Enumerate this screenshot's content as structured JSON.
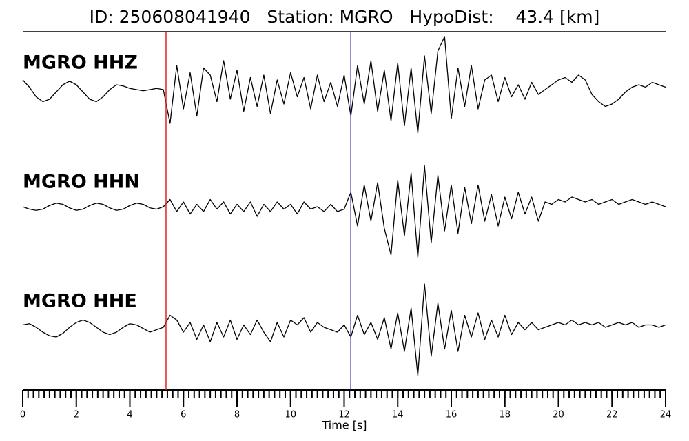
{
  "chart_data": {
    "type": "line",
    "title": "ID: 250608041940   Station: MGRO   HypoDist:    43.4 [km]",
    "xlabel": "Time [s]",
    "xlim": [
      0,
      24
    ],
    "xticks": [
      0,
      2,
      4,
      6,
      8,
      10,
      12,
      14,
      16,
      18,
      20,
      22,
      24
    ],
    "xminor": 0.2,
    "label_color": "#4c9a0a",
    "line_color": "#000000",
    "picks": [
      {
        "x": 5.35,
        "color": "#e8211f"
      },
      {
        "x": 12.25,
        "color": "#2a2aa0"
      }
    ],
    "x": [
      0,
      0.25,
      0.5,
      0.75,
      1,
      1.25,
      1.5,
      1.75,
      2,
      2.25,
      2.5,
      2.75,
      3,
      3.25,
      3.5,
      3.75,
      4,
      4.25,
      4.5,
      4.75,
      5,
      5.25,
      5.5,
      5.75,
      6,
      6.25,
      6.5,
      6.75,
      7,
      7.25,
      7.5,
      7.75,
      8,
      8.25,
      8.5,
      8.75,
      9,
      9.25,
      9.5,
      9.75,
      10,
      10.25,
      10.5,
      10.75,
      11,
      11.25,
      11.5,
      11.75,
      12,
      12.25,
      12.5,
      12.75,
      13,
      13.25,
      13.5,
      13.75,
      14,
      14.25,
      14.5,
      14.75,
      15,
      15.25,
      15.5,
      15.75,
      16,
      16.25,
      16.5,
      16.75,
      17,
      17.25,
      17.5,
      17.75,
      18,
      18.25,
      18.5,
      18.75,
      19,
      19.25,
      19.5,
      19.75,
      20,
      20.25,
      20.5,
      20.75,
      21,
      21.25,
      21.5,
      21.75,
      22,
      22.25,
      22.5,
      22.75,
      23,
      23.25,
      23.5,
      23.75,
      24
    ],
    "series": [
      {
        "name": "MGRO HHZ",
        "values": [
          0.4,
          0.1,
          -0.3,
          -0.5,
          -0.4,
          -0.1,
          0.2,
          0.35,
          0.2,
          -0.1,
          -0.4,
          -0.5,
          -0.3,
          0.0,
          0.2,
          0.15,
          0.05,
          0.0,
          -0.05,
          0.0,
          0.05,
          0.0,
          -1.4,
          1.0,
          -0.8,
          0.7,
          -1.1,
          0.9,
          0.6,
          -0.5,
          1.2,
          -0.4,
          0.8,
          -0.9,
          0.5,
          -0.7,
          0.6,
          -1.0,
          0.4,
          -0.6,
          0.7,
          -0.3,
          0.5,
          -0.8,
          0.6,
          -0.5,
          0.3,
          -0.7,
          0.6,
          -1.1,
          1.0,
          -0.6,
          1.2,
          -0.9,
          0.8,
          -1.3,
          1.1,
          -1.5,
          0.9,
          -1.8,
          1.4,
          -1.0,
          1.6,
          2.2,
          -1.2,
          0.9,
          -0.7,
          1.0,
          -0.8,
          0.4,
          0.6,
          -0.5,
          0.5,
          -0.3,
          0.2,
          -0.4,
          0.3,
          -0.2,
          0.0,
          0.2,
          0.4,
          0.5,
          0.3,
          0.6,
          0.4,
          -0.2,
          -0.5,
          -0.7,
          -0.6,
          -0.4,
          -0.1,
          0.1,
          0.2,
          0.1,
          0.3,
          0.2,
          0.1
        ]
      },
      {
        "name": "MGRO HHN",
        "values": [
          0.0,
          -0.1,
          -0.15,
          -0.1,
          0.05,
          0.15,
          0.1,
          -0.05,
          -0.15,
          -0.1,
          0.05,
          0.15,
          0.1,
          -0.05,
          -0.15,
          -0.1,
          0.05,
          0.15,
          0.1,
          -0.05,
          -0.1,
          0.0,
          0.3,
          -0.2,
          0.2,
          -0.3,
          0.1,
          -0.2,
          0.3,
          -0.1,
          0.2,
          -0.3,
          0.1,
          -0.2,
          0.2,
          -0.4,
          0.1,
          -0.2,
          0.2,
          -0.1,
          0.1,
          -0.3,
          0.2,
          -0.1,
          0.0,
          -0.2,
          0.1,
          -0.2,
          -0.1,
          0.6,
          -0.8,
          0.9,
          -0.6,
          1.0,
          -0.9,
          -2.0,
          1.1,
          -1.2,
          1.4,
          -2.1,
          1.7,
          -1.5,
          1.3,
          -1.0,
          0.9,
          -1.1,
          0.8,
          -0.7,
          0.9,
          -0.6,
          0.5,
          -0.8,
          0.4,
          -0.5,
          0.6,
          -0.3,
          0.4,
          -0.6,
          0.2,
          0.1,
          0.3,
          0.2,
          0.4,
          0.3,
          0.2,
          0.3,
          0.1,
          0.2,
          0.3,
          0.1,
          0.2,
          0.3,
          0.2,
          0.1,
          0.2,
          0.1,
          0.0
        ]
      },
      {
        "name": "MGRO HHE",
        "values": [
          0.1,
          0.15,
          0.0,
          -0.2,
          -0.35,
          -0.4,
          -0.25,
          0.0,
          0.2,
          0.3,
          0.2,
          0.0,
          -0.2,
          -0.3,
          -0.2,
          0.0,
          0.15,
          0.1,
          -0.05,
          -0.2,
          -0.1,
          0.0,
          0.5,
          0.3,
          -0.2,
          0.2,
          -0.5,
          0.1,
          -0.6,
          0.2,
          -0.4,
          0.3,
          -0.5,
          0.1,
          -0.3,
          0.3,
          -0.2,
          -0.6,
          0.2,
          -0.4,
          0.3,
          0.1,
          0.4,
          -0.2,
          0.2,
          0.0,
          -0.1,
          -0.2,
          0.1,
          -0.4,
          0.5,
          -0.3,
          0.2,
          -0.5,
          0.4,
          -0.9,
          0.6,
          -1.0,
          0.8,
          -2.0,
          1.8,
          -1.2,
          1.0,
          -0.9,
          0.7,
          -1.0,
          0.5,
          -0.4,
          0.6,
          -0.5,
          0.3,
          -0.4,
          0.5,
          -0.3,
          0.2,
          -0.1,
          0.2,
          -0.1,
          0.0,
          0.1,
          0.2,
          0.1,
          0.3,
          0.1,
          0.2,
          0.1,
          0.2,
          0.0,
          0.1,
          0.2,
          0.1,
          0.2,
          0.0,
          0.1,
          0.1,
          0.0,
          0.1
        ]
      }
    ]
  }
}
